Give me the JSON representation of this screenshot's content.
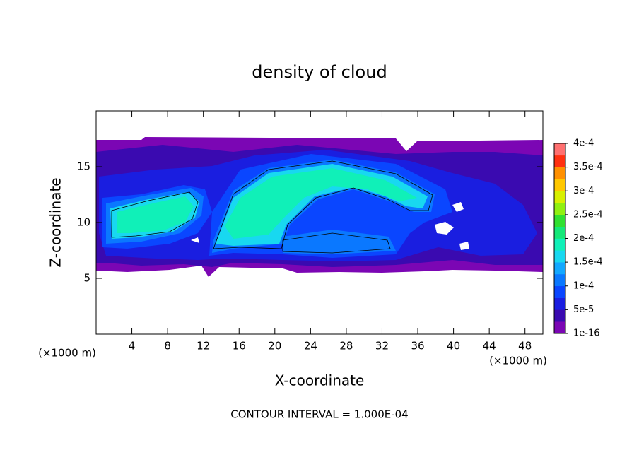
{
  "chart_data": {
    "type": "contour",
    "title": "density of cloud",
    "x_label": "X-coordinate",
    "y_label": "Z-coordinate",
    "x_unit": "(×1000 m)",
    "annotation": "CONTOUR INTERVAL = 1.000E-04",
    "xlim": [
      0,
      50
    ],
    "xticks": [
      4,
      8,
      12,
      16,
      20,
      24,
      28,
      32,
      36,
      40,
      44,
      48
    ],
    "ylim": [
      0,
      20
    ],
    "yticks": [
      5,
      10,
      15
    ],
    "colorbar": {
      "lim": [
        1e-16,
        0.0004
      ],
      "ticks": [
        {
          "value": 1e-16,
          "label": "1e-16"
        },
        {
          "value": 5e-05,
          "label": "5e-5"
        },
        {
          "value": 0.0001,
          "label": "1e-4"
        },
        {
          "value": 0.00015,
          "label": "1.5e-4"
        },
        {
          "value": 0.0002,
          "label": "2e-4"
        },
        {
          "value": 0.00025,
          "label": "2.5e-4"
        },
        {
          "value": 0.0003,
          "label": "3e-4"
        },
        {
          "value": 0.00035,
          "label": "3.5e-4"
        },
        {
          "value": 0.0004,
          "label": "4e-4"
        }
      ],
      "colors": [
        "#7b06b4",
        "#3a0ab0",
        "#1a1ee0",
        "#0a46ff",
        "#0a78ff",
        "#12a8ff",
        "#18d8f0",
        "#10f0b8",
        "#14e878",
        "#30e030",
        "#90f010",
        "#d8f000",
        "#ffc800",
        "#ff9000",
        "#ff3010",
        "#ff7070"
      ]
    }
  }
}
